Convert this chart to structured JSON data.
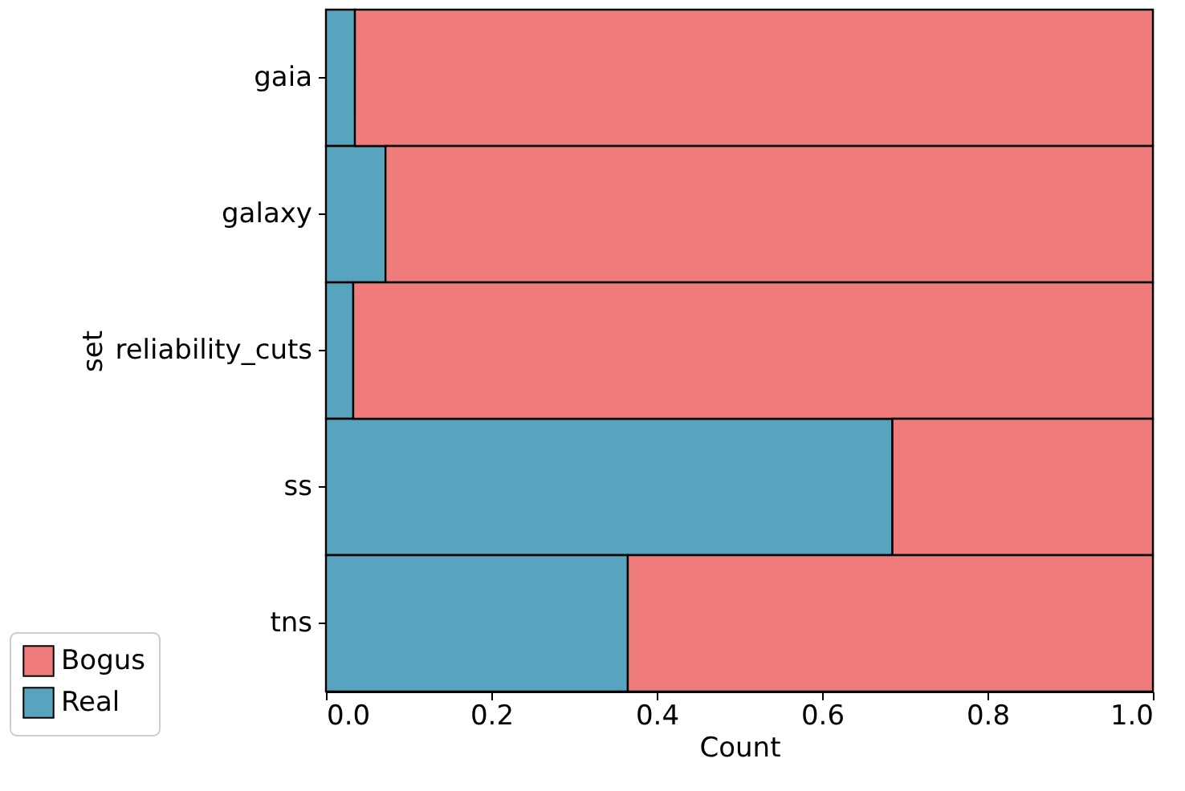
{
  "chart_data": {
    "type": "bar",
    "orientation": "horizontal",
    "stacked": true,
    "xlabel": "Count",
    "ylabel": "set",
    "categories": [
      "gaia",
      "galaxy",
      "reliability_cuts",
      "ss",
      "tns"
    ],
    "series": [
      {
        "name": "Real",
        "color": "#58a3bd",
        "values": [
          0.035,
          0.072,
          0.033,
          0.685,
          0.365
        ]
      },
      {
        "name": "Bogus",
        "color": "#f07b7b",
        "values": [
          0.965,
          0.928,
          0.967,
          0.315,
          0.635
        ]
      }
    ],
    "xlim": [
      0,
      1
    ],
    "xticks": [
      {
        "value": 0,
        "label": "0.0"
      },
      0.2,
      0.4,
      0.6,
      0.8,
      {
        "value": 1,
        "label": "1.0"
      }
    ],
    "legend": "bottom left"
  }
}
